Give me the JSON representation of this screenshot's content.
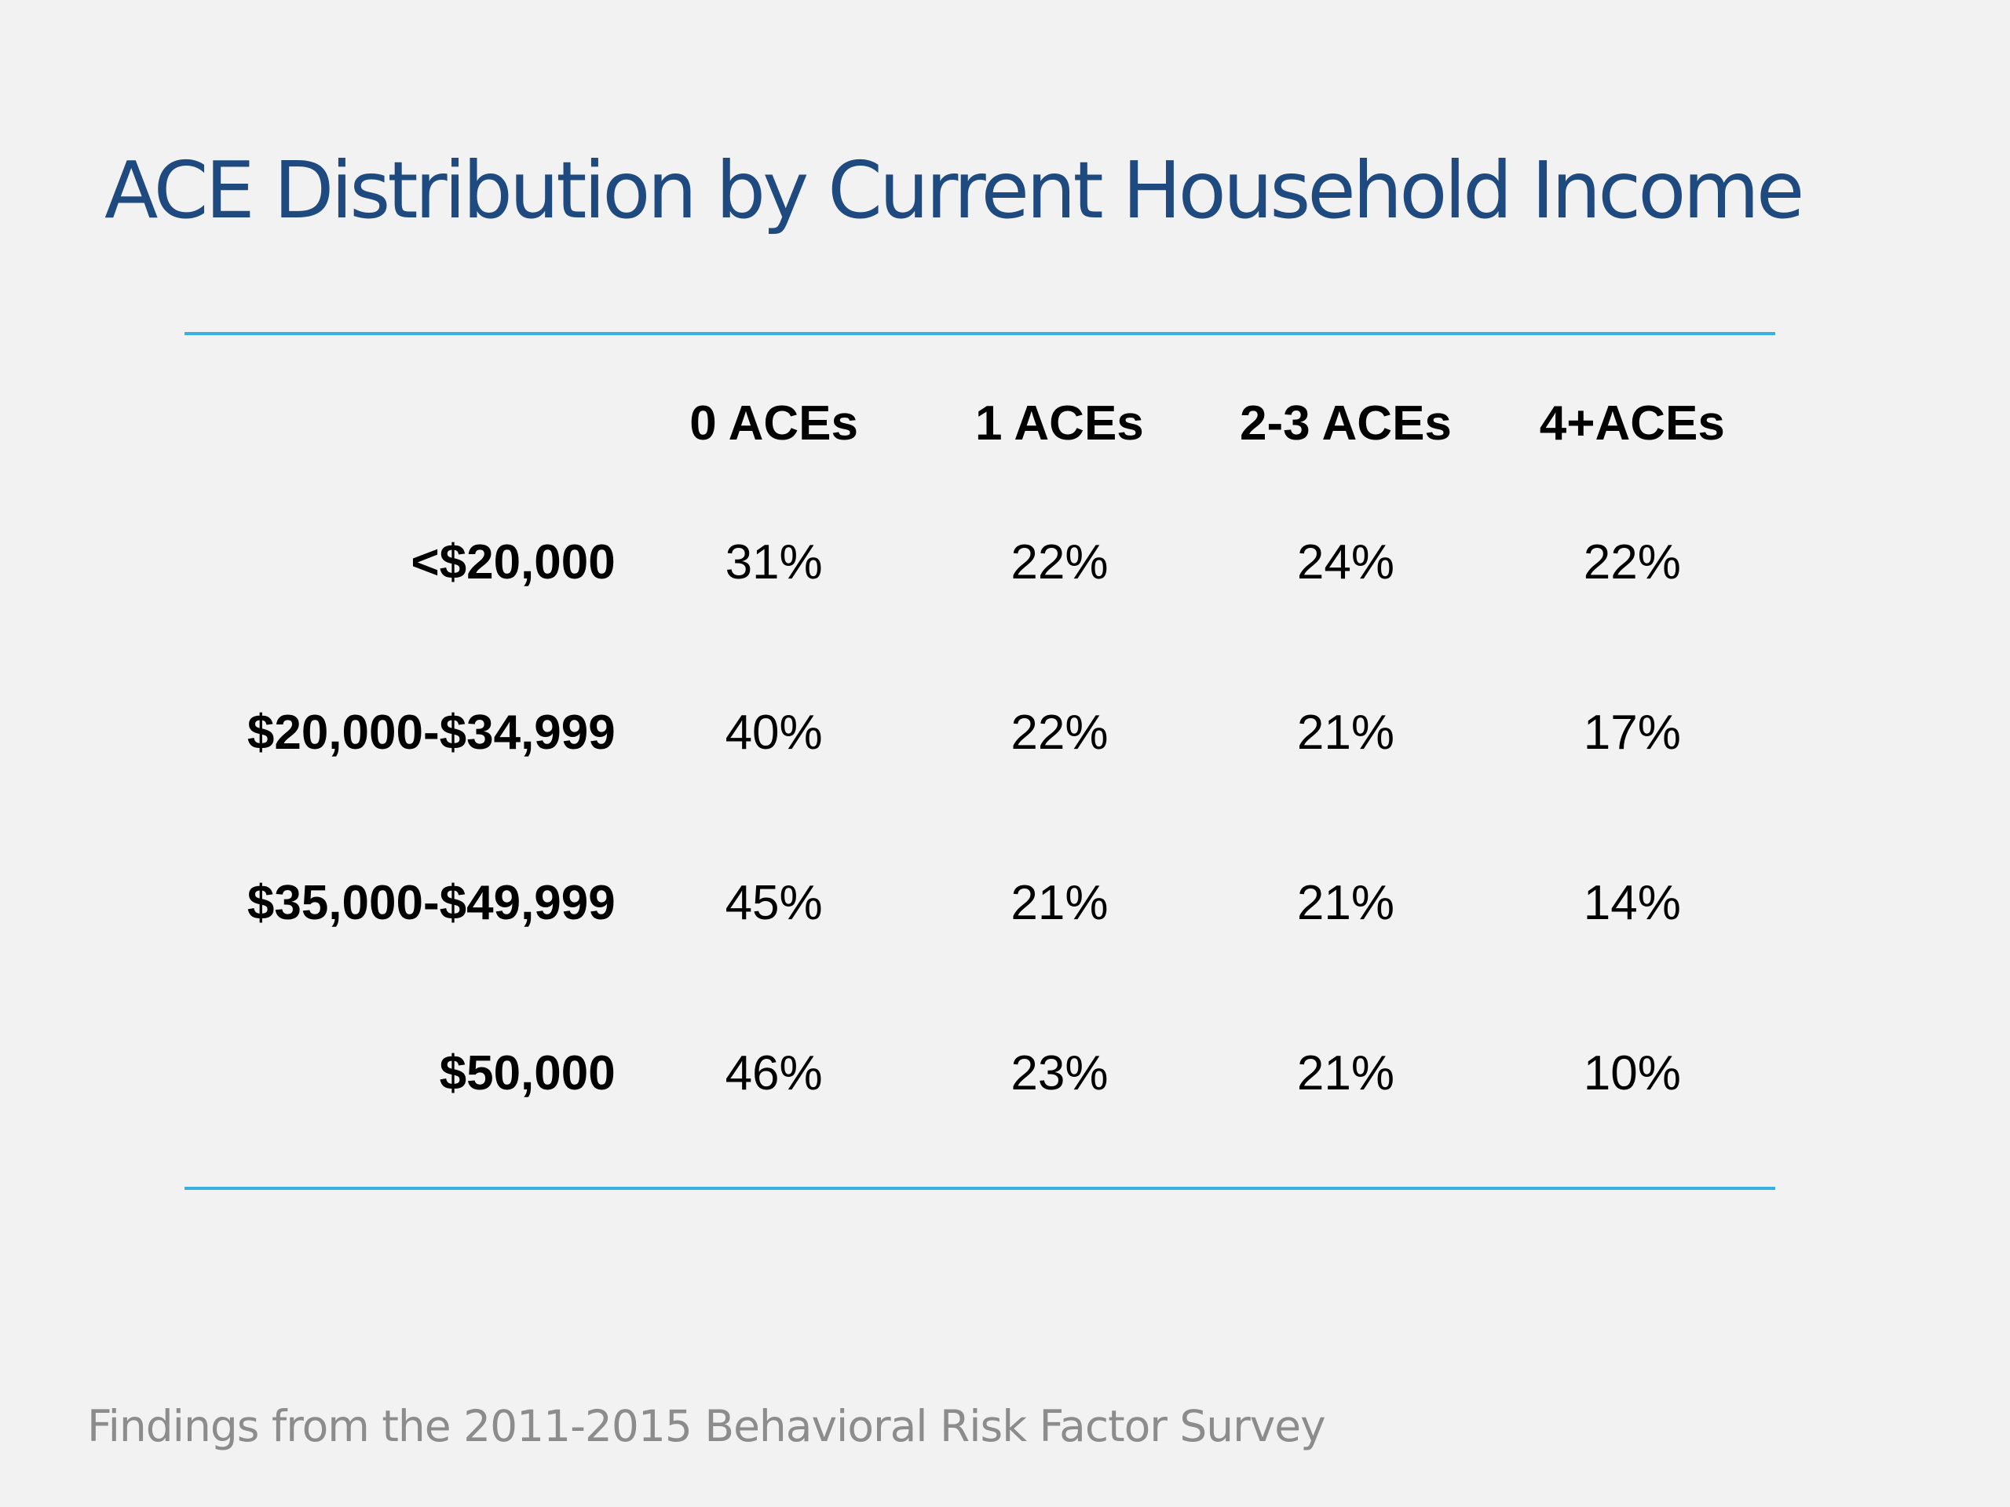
{
  "title": "ACE Distribution by Current Household Income",
  "table": {
    "columns": [
      "0 ACEs",
      "1 ACEs",
      "2-3 ACEs",
      "4+ACEs"
    ],
    "rows": [
      {
        "label": "<$20,000",
        "values": [
          "31%",
          "22%",
          "24%",
          "22%"
        ]
      },
      {
        "label": "$20,000-$34,999",
        "values": [
          "40%",
          "22%",
          "21%",
          "17%"
        ]
      },
      {
        "label": "$35,000-$49,999",
        "values": [
          "45%",
          "21%",
          "21%",
          "14%"
        ]
      },
      {
        "label": "$50,000",
        "values": [
          "46%",
          "23%",
          "21%",
          "10%"
        ]
      }
    ]
  },
  "footer": "Findings from the 2011-2015 Behavioral Risk Factor Survey",
  "colors": {
    "background": "#f2f2f2",
    "title": "#1f4a80",
    "rule": "#3ab0e2",
    "footer": "#8c8c8c"
  }
}
